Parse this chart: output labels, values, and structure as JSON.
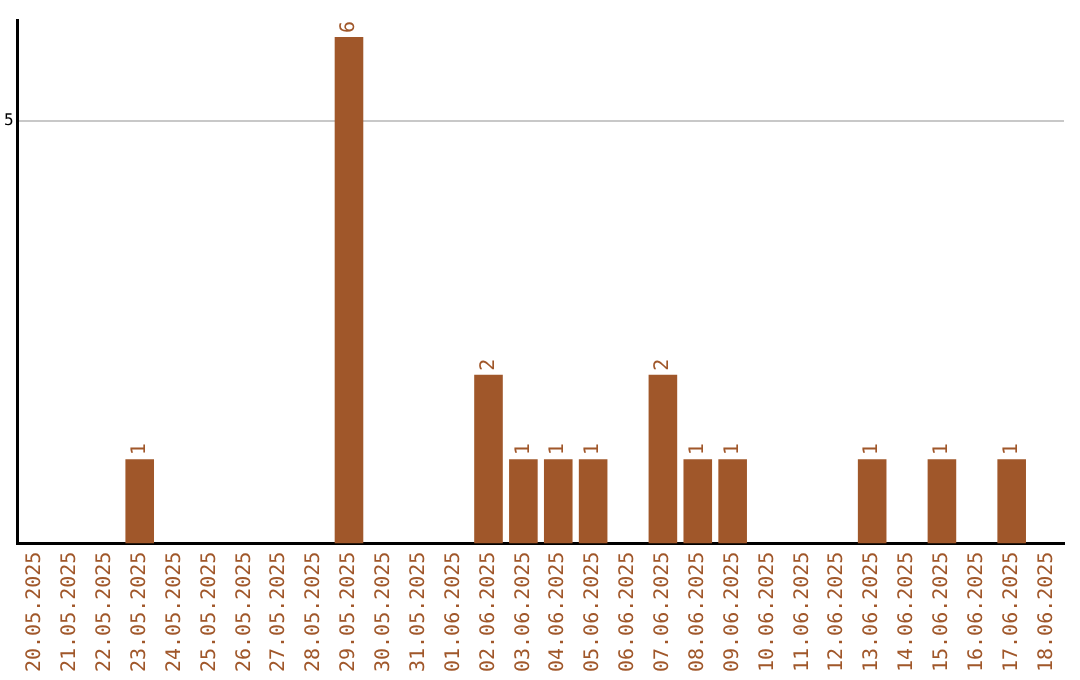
{
  "chart_data": {
    "type": "bar",
    "categories": [
      "20.05.2025",
      "21.05.2025",
      "22.05.2025",
      "23.05.2025",
      "24.05.2025",
      "25.05.2025",
      "26.05.2025",
      "27.05.2025",
      "28.05.2025",
      "29.05.2025",
      "30.05.2025",
      "31.05.2025",
      "01.06.2025",
      "02.06.2025",
      "03.06.2025",
      "04.06.2025",
      "05.06.2025",
      "06.06.2025",
      "07.06.2025",
      "08.06.2025",
      "09.06.2025",
      "10.06.2025",
      "11.06.2025",
      "12.06.2025",
      "13.06.2025",
      "14.06.2025",
      "15.06.2025",
      "16.06.2025",
      "17.06.2025",
      "18.06.2025"
    ],
    "values": [
      0,
      0,
      0,
      1,
      0,
      0,
      0,
      0,
      0,
      6,
      0,
      0,
      0,
      2,
      1,
      1,
      1,
      0,
      2,
      1,
      1,
      0,
      0,
      0,
      1,
      0,
      1,
      0,
      1,
      0
    ],
    "value_labels": [
      null,
      null,
      null,
      "1",
      null,
      null,
      null,
      null,
      null,
      "6",
      null,
      null,
      null,
      "2",
      "1",
      "1",
      "1",
      null,
      "2",
      "1",
      "1",
      null,
      null,
      null,
      "1",
      null,
      "1",
      null,
      "1",
      null
    ],
    "color": "#a0572a",
    "ylim": [
      0,
      6.2
    ],
    "yticks": [
      5
    ],
    "grid": "y",
    "legend": false
  }
}
